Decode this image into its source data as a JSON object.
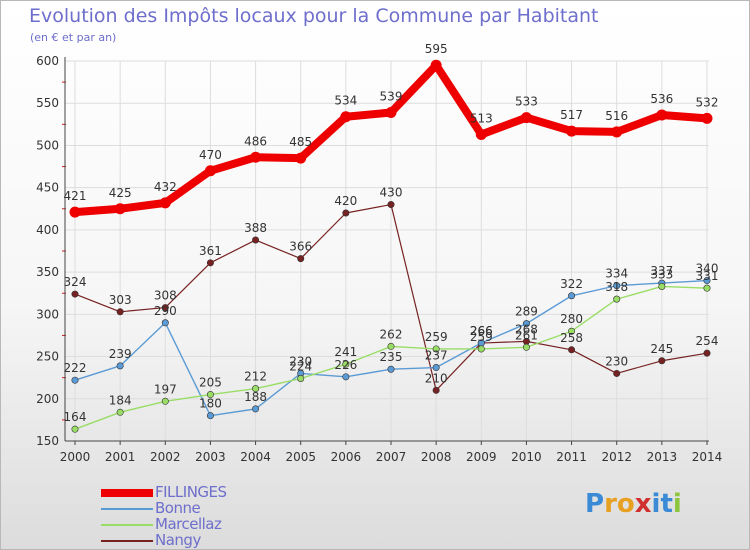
{
  "title": "Evolution des Impôts locaux pour la Commune par Habitant",
  "subtitle": "(en € et par an)",
  "logo": {
    "letters": [
      "P",
      "r",
      "o",
      "x",
      "i",
      "t",
      "i"
    ],
    "colors": [
      "#3a8ad6",
      "#e8a020",
      "#e8a020",
      "#d03030",
      "#3a8ad6",
      "#3a8ad6",
      "#8cc63f"
    ]
  },
  "chart_data": {
    "type": "line",
    "title": "Evolution des Impôts locaux pour la Commune par Habitant",
    "subtitle": "(en € et par an)",
    "x": [
      "2000",
      "2001",
      "2002",
      "2003",
      "2004",
      "2005",
      "2006",
      "2007",
      "2008",
      "2009",
      "2010",
      "2011",
      "2012",
      "2013",
      "2014"
    ],
    "ylim": [
      150,
      600
    ],
    "yticks": [
      150,
      200,
      250,
      300,
      350,
      400,
      450,
      500,
      550,
      600
    ],
    "grid": true,
    "legend_position": "bottom-left",
    "series": [
      {
        "name": "FILLINGES",
        "color": "#ee0000",
        "width": 8,
        "values": [
          421,
          425,
          432,
          470,
          486,
          485,
          534,
          539,
          595,
          513,
          533,
          517,
          516,
          536,
          532
        ]
      },
      {
        "name": "Bonne",
        "color": "#5b9bd5",
        "width": 1.4,
        "values": [
          222,
          239,
          290,
          180,
          188,
          230,
          226,
          235,
          237,
          266,
          289,
          322,
          334,
          337,
          340
        ]
      },
      {
        "name": "Marcellaz",
        "color": "#99dd66",
        "width": 1.4,
        "values": [
          164,
          184,
          197,
          205,
          212,
          224,
          241,
          262,
          259,
          259,
          261,
          280,
          318,
          333,
          331
        ]
      },
      {
        "name": "Nangy",
        "color": "#772222",
        "width": 1.2,
        "values": [
          324,
          303,
          308,
          361,
          388,
          366,
          420,
          430,
          210,
          266,
          268,
          258,
          230,
          245,
          254
        ]
      }
    ]
  }
}
